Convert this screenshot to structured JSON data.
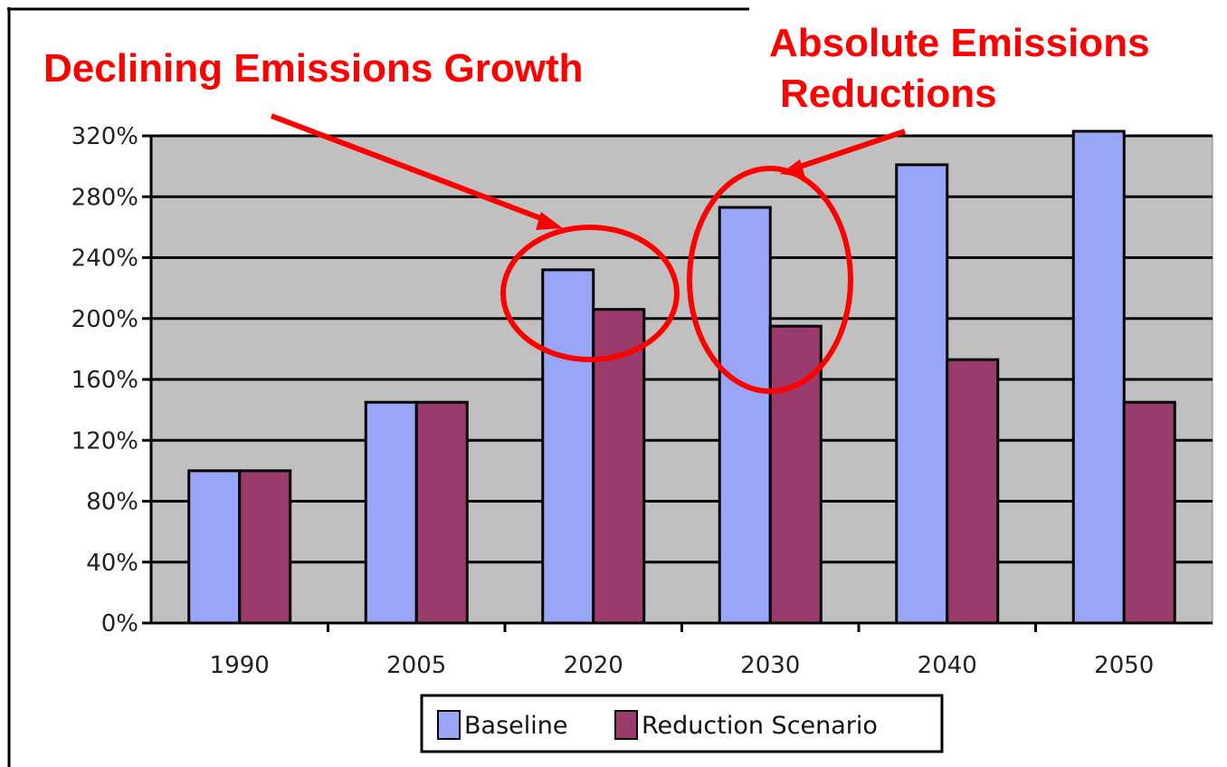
{
  "chart_data": {
    "type": "bar",
    "categories": [
      "1990",
      "2005",
      "2020",
      "2030",
      "2040",
      "2050"
    ],
    "series": [
      {
        "name": "Baseline",
        "values": [
          100,
          145,
          232,
          273,
          301,
          323
        ]
      },
      {
        "name": "Reduction Scenario",
        "values": [
          100,
          145,
          206,
          195,
          173,
          145
        ]
      }
    ],
    "ylim": [
      0,
      320
    ],
    "yticks": [
      0,
      40,
      80,
      120,
      160,
      200,
      240,
      280,
      320
    ],
    "ytick_labels": [
      "0%",
      "40%",
      "80%",
      "120%",
      "160%",
      "200%",
      "240%",
      "280%",
      "320%"
    ],
    "grid": true,
    "legend_position": "bottom-center",
    "annotations": [
      {
        "text": "Declining Emissions Growth",
        "target_category": "2020"
      },
      {
        "text_lines": [
          "Absolute Emissions",
          "Reductions"
        ],
        "target_category": "2030"
      }
    ]
  },
  "colors": {
    "baseline": "#99a6f8",
    "reduction": "#9b3a6c",
    "plot_background": "#c0c0c0",
    "annotation": "#ff0000"
  }
}
